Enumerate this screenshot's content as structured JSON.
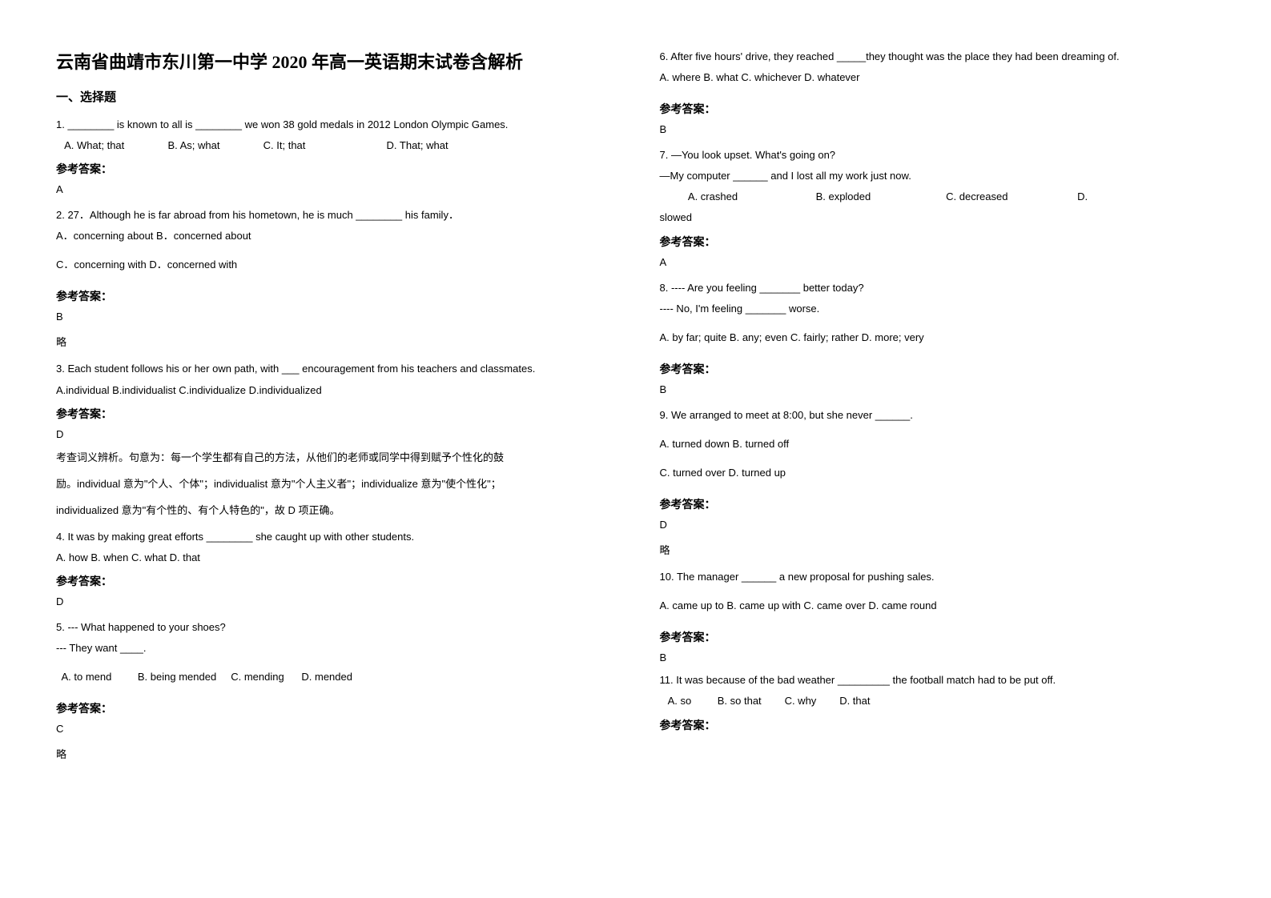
{
  "title": "云南省曲靖市东川第一中学 2020 年高一英语期末试卷含解析",
  "section1": "一、选择题",
  "answer_label": "参考答案：",
  "skip": "略",
  "col1": {
    "q1": {
      "text": "1. ________ is known to all is ________ we won 38 gold medals in 2012 London Olympic Games.",
      "opts": "   A. What; that               B. As; what               C. It; that                            D. That; what",
      "ans": "A"
    },
    "q2": {
      "text": "2. 27．Although he is far abroad from his hometown, he is much ________ his family．",
      "optA": "A．concerning about    B．concerned about",
      "optC": "C．concerning with     D．concerned with",
      "ans": "B"
    },
    "q3": {
      "text": "3. Each student follows his or her own path, with ___ encouragement from his teachers and classmates.",
      "opts": "A.individual       B.individualist   C.individualize   D.individualized",
      "ans": "D",
      "exp1": "考查词义辨析。句意为：每一个学生都有自己的方法，从他们的老师或同学中得到赋予个性化的鼓",
      "exp2": "励。individual 意为\"个人、个体\"；individualist 意为\"个人主义者\"；individualize 意为\"使个性化\"；",
      "exp3": "individualized 意为\"有个性的、有个人特色的\"，故 D 项正确。"
    },
    "q4": {
      "text": "4. It was by making great efforts ________ she caught up with other students.",
      "opts": "A. how  B. when          C. what D. that",
      "ans": "D"
    },
    "q5": {
      "text": "5. --- What happened to your shoes?",
      "text2": "  --- They want ____.",
      "opts": "  A. to mend         B. being mended     C. mending      D. mended",
      "ans": "C"
    }
  },
  "col2": {
    "q6": {
      "text": "6. After five hours' drive, they reached _____they thought was the place they had been dreaming of.",
      "opts": "A. where      B. what        C. whichever        D. whatever",
      "ans": "B"
    },
    "q7": {
      "text": "7. —You look upset. What's going on?",
      "text2": "     —My computer ______ and I lost all my work just now.",
      "opts": "          A. crashed                           B. exploded                          C. decreased                        D.",
      "opts2": "slowed",
      "ans": "A"
    },
    "q8": {
      "text": "8. ---- Are you feeling _______ better today?",
      "text2": "---- No, I'm feeling _______ worse.",
      "opts": "A. by far; quite         B. any; even     C. fairly; rather       D. more; very",
      "ans": "B"
    },
    "q9": {
      "text": "9. We arranged to meet at 8:00, but she never ______.",
      "optsA": "A. turned down        B. turned off",
      "optsC": "C. turned over       D. turned up",
      "ans": "D"
    },
    "q10": {
      "text": "10. The manager ______ a new proposal for pushing sales.",
      "opts": "  A. came up to    B. came up with    C. came over    D. came round",
      "ans": "B"
    },
    "q11": {
      "text": "11. It was because of the bad weather _________ the football match had to be put off.",
      "opts": "   A. so         B. so that        C. why        D. that"
    }
  }
}
